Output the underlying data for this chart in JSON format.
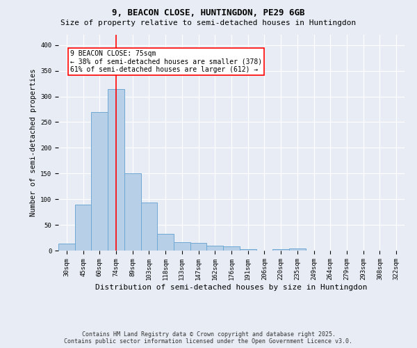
{
  "title1": "9, BEACON CLOSE, HUNTINGDON, PE29 6GB",
  "title2": "Size of property relative to semi-detached houses in Huntingdon",
  "xlabel": "Distribution of semi-detached houses by size in Huntingdon",
  "ylabel": "Number of semi-detached properties",
  "bin_labels": [
    "30sqm",
    "45sqm",
    "60sqm",
    "74sqm",
    "89sqm",
    "103sqm",
    "118sqm",
    "133sqm",
    "147sqm",
    "162sqm",
    "176sqm",
    "191sqm",
    "206sqm",
    "220sqm",
    "235sqm",
    "249sqm",
    "264sqm",
    "279sqm",
    "293sqm",
    "308sqm",
    "322sqm"
  ],
  "bar_values": [
    14,
    90,
    270,
    315,
    150,
    93,
    33,
    16,
    15,
    10,
    8,
    3,
    0,
    3,
    4,
    0,
    0,
    0,
    0,
    0,
    0
  ],
  "bar_color": "#b8cfe8",
  "bar_edge_color": "#6fa8d4",
  "property_bin_index": 3,
  "annotation_text": "9 BEACON CLOSE: 75sqm\n← 38% of semi-detached houses are smaller (378)\n61% of semi-detached houses are larger (612) →",
  "annotation_box_color": "white",
  "annotation_box_edge": "red",
  "vline_color": "red",
  "footer1": "Contains HM Land Registry data © Crown copyright and database right 2025.",
  "footer2": "Contains public sector information licensed under the Open Government Licence v3.0.",
  "bg_color": "#e8edf5",
  "plot_bg_color": "#e8edf5",
  "ylim": [
    0,
    420
  ],
  "xlim": [
    -0.5,
    20.5
  ],
  "title1_fontsize": 9,
  "title2_fontsize": 8,
  "ylabel_fontsize": 7.5,
  "xlabel_fontsize": 8,
  "tick_fontsize": 6.5,
  "annotation_fontsize": 7,
  "footer_fontsize": 6
}
